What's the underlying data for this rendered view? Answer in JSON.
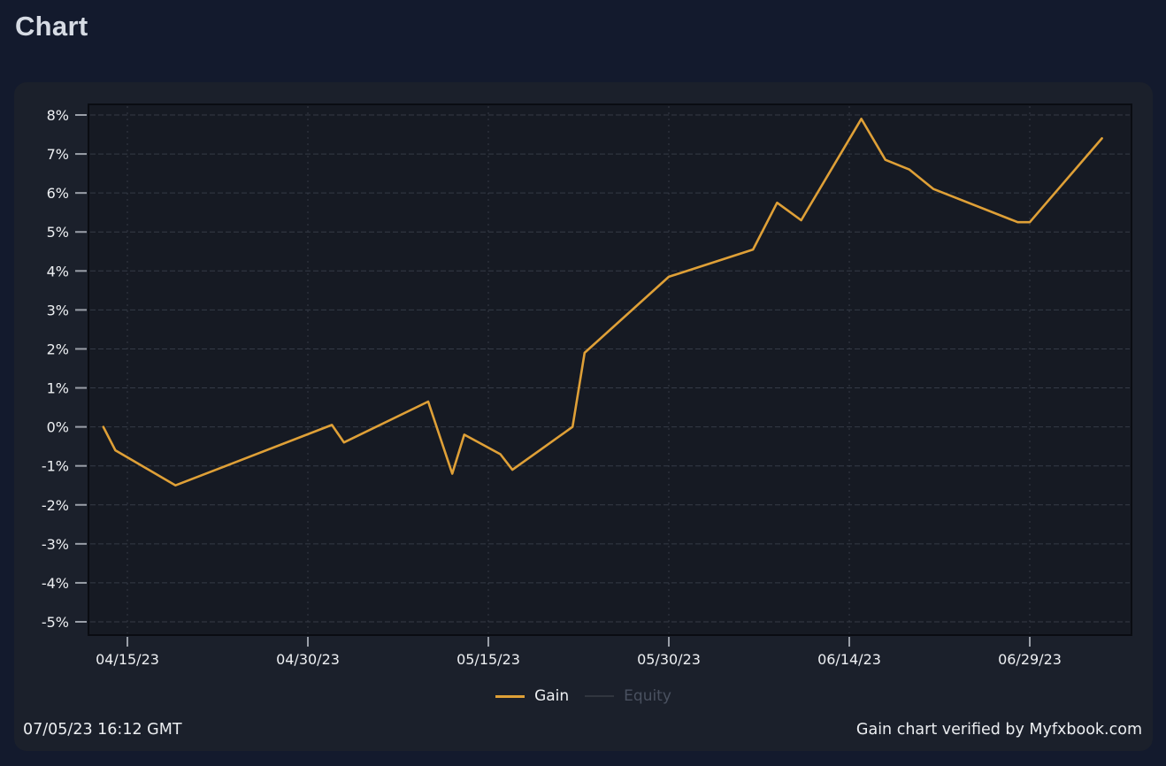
{
  "window": {
    "title": "Chart"
  },
  "colors": {
    "page_bg": "#131a2d",
    "title_text": "#d6dbe4",
    "panel_bg": "#1b202b",
    "plot_bg": "#161a23",
    "plot_border": "#0a0c12",
    "grid": "#353a46",
    "tick": "#9ba0a9",
    "axis_text": "#edeff2",
    "gain": "#dfa037",
    "equity_swatch": "#31363f",
    "equity_disabled_text": "#4a5160",
    "footer_text": "#eceef1"
  },
  "chart_data": {
    "type": "line",
    "title": "Chart",
    "x_axis": {
      "tick_labels": [
        "04/15/23",
        "04/30/23",
        "05/15/23",
        "05/30/23",
        "06/14/23",
        "06/29/23"
      ]
    },
    "y_axis": {
      "unit": "%",
      "tick_values": [
        8,
        7,
        6,
        5,
        4,
        3,
        2,
        1,
        0,
        -1,
        -2,
        -3,
        -4,
        -5
      ],
      "range": [
        -5.3,
        8.3
      ]
    },
    "grid": "dashed",
    "legend_position": "bottom",
    "series": [
      {
        "name": "Gain",
        "color": "#dfa037",
        "visible": true,
        "points": [
          [
            "04/13/23",
            0.0
          ],
          [
            "04/14/23",
            -0.6
          ],
          [
            "04/19/23",
            -1.5
          ],
          [
            "05/02/23",
            0.05
          ],
          [
            "05/03/23",
            -0.4
          ],
          [
            "05/10/23",
            0.65
          ],
          [
            "05/12/23",
            -1.2
          ],
          [
            "05/13/23",
            -0.2
          ],
          [
            "05/16/23",
            -0.7
          ],
          [
            "05/17/23",
            -1.1
          ],
          [
            "05/22/23",
            0.0
          ],
          [
            "05/23/23",
            1.9
          ],
          [
            "05/30/23",
            3.85
          ],
          [
            "06/06/23",
            4.55
          ],
          [
            "06/08/23",
            5.75
          ],
          [
            "06/10/23",
            5.3
          ],
          [
            "06/15/23",
            7.9
          ],
          [
            "06/17/23",
            6.85
          ],
          [
            "06/19/23",
            6.6
          ],
          [
            "06/21/23",
            6.1
          ],
          [
            "06/28/23",
            5.25
          ],
          [
            "06/29/23",
            5.25
          ],
          [
            "07/05/23",
            7.4
          ]
        ]
      },
      {
        "name": "Equity",
        "color": "#31363f",
        "visible": false,
        "points": []
      }
    ]
  },
  "legend": {
    "items": [
      {
        "label": "Gain"
      },
      {
        "label": "Equity"
      }
    ]
  },
  "footer": {
    "timestamp": "07/05/23 16:12 GMT",
    "verification": "Gain chart verified by Myfxbook.com"
  }
}
